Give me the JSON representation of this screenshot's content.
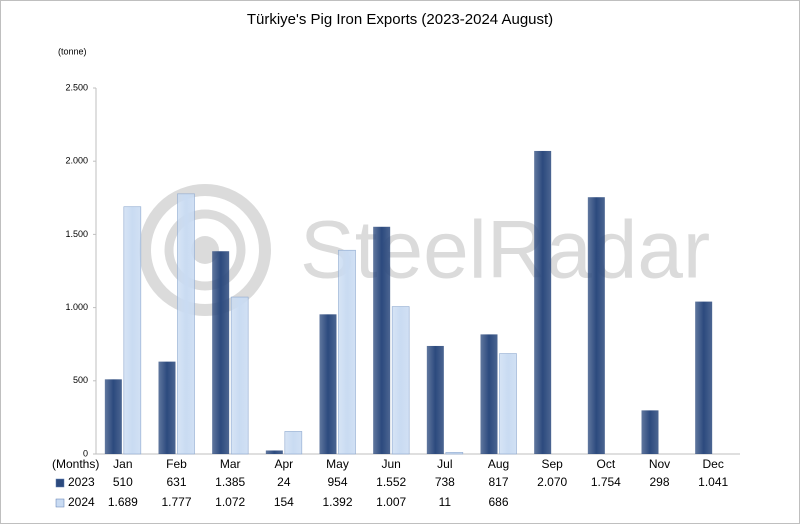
{
  "chart_data": {
    "type": "bar",
    "title": "Türkiye's Pig Iron Exports (2023-2024 August)",
    "y_unit": "(tonne)",
    "x_label": "(Months)",
    "watermark": "SteelRadar",
    "categories": [
      "Jan",
      "Feb",
      "Mar",
      "Apr",
      "May",
      "Jun",
      "Jul",
      "Aug",
      "Sep",
      "Oct",
      "Nov",
      "Dec"
    ],
    "series": [
      {
        "name": "2023",
        "color": "#2c4a7e",
        "values": [
          510,
          631,
          1385,
          24,
          954,
          1552,
          738,
          817,
          2070,
          1754,
          298,
          1041
        ],
        "value_labels": [
          "510",
          "631",
          "1.385",
          "24",
          "954",
          "1.552",
          "738",
          "817",
          "2.070",
          "1.754",
          "298",
          "1.041"
        ]
      },
      {
        "name": "2024",
        "color": "#c9dbf2",
        "values": [
          1689,
          1777,
          1072,
          154,
          1392,
          1007,
          11,
          686,
          null,
          null,
          null,
          null
        ],
        "value_labels": [
          "1.689",
          "1.777",
          "1.072",
          "154",
          "1.392",
          "1.007",
          "11",
          "686",
          null,
          null,
          null,
          null
        ]
      }
    ],
    "ylim": [
      0,
      2500
    ],
    "yticks": [
      0,
      500,
      {
        "value": 1000,
        "label": "1.000"
      },
      {
        "value": 1500,
        "label": "1.500"
      },
      {
        "value": 2000,
        "label": "2.000"
      },
      {
        "value": 2500,
        "label": "2.500"
      }
    ],
    "grid": false
  }
}
